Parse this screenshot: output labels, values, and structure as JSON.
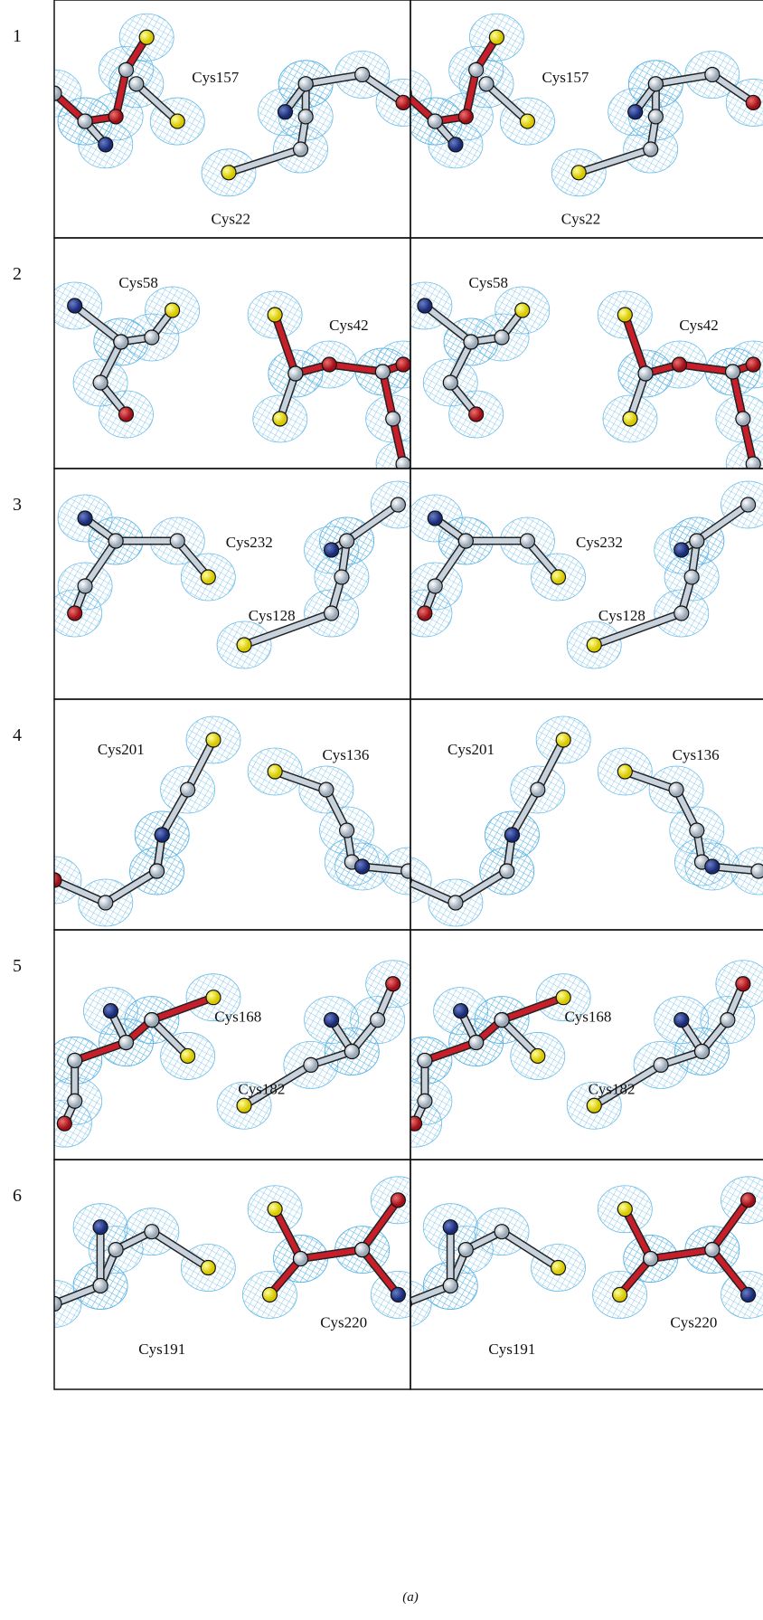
{
  "figure": {
    "panels": [
      {
        "number": "1",
        "labels": [
          "Cys157",
          "Cys22"
        ]
      },
      {
        "number": "2",
        "labels": [
          "Cys58",
          "Cys42"
        ]
      },
      {
        "number": "3",
        "labels": [
          "Cys232",
          "Cys128"
        ]
      },
      {
        "number": "4",
        "labels": [
          "Cys201",
          "Cys136"
        ]
      },
      {
        "number": "5",
        "labels": [
          "Cys168",
          "Cys182"
        ]
      },
      {
        "number": "6",
        "labels": [
          "Cys191",
          "Cys220"
        ]
      }
    ],
    "caption": "(a)"
  }
}
